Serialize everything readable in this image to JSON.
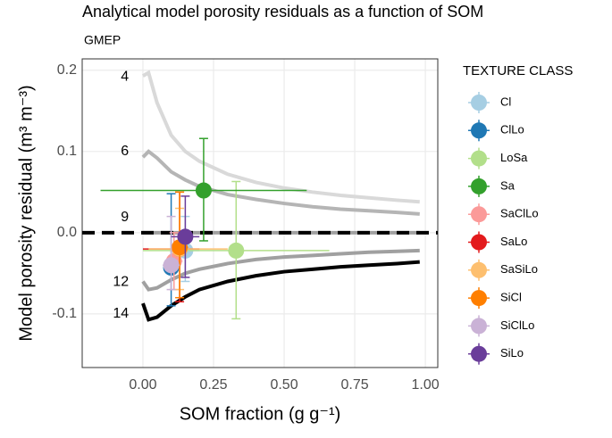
{
  "chart_data": {
    "type": "scatter",
    "title": "Analytical model porosity residuals as a function of SOM",
    "subtitle": "GMEP",
    "x_label": "SOM fraction (g g⁻¹)",
    "y_label": "Model porosity residual (m³ m⁻³)",
    "xlim": [
      -0.215,
      1.044
    ],
    "ylim": [
      -0.166,
      0.214
    ],
    "xticks": [
      {
        "value": 0,
        "label": "0.00"
      },
      {
        "value": 0.25,
        "label": "0.25"
      },
      {
        "value": 0.5,
        "label": "0.50"
      },
      {
        "value": 0.75,
        "label": "0.75"
      },
      {
        "value": 1,
        "label": "1.00"
      }
    ],
    "yticks": [
      -0.1,
      {
        "value": 0,
        "label": "0.0"
      },
      0.1,
      0.2
    ],
    "grid": true,
    "hline": 0,
    "curves": [
      {
        "name": "4",
        "color": "#d9d9d9",
        "label_at": [
          -0.05,
          0.192
        ],
        "x": [
          0,
          0.02,
          0.05,
          0.1,
          0.15,
          0.2,
          0.3,
          0.4,
          0.5,
          0.6,
          0.7,
          0.8,
          0.9,
          0.98
        ],
        "values": [
          0.193,
          0.197,
          0.16,
          0.12,
          0.1,
          0.088,
          0.072,
          0.062,
          0.055,
          0.05,
          0.046,
          0.043,
          0.04,
          0.038
        ]
      },
      {
        "name": "6",
        "color": "#b5b5b5",
        "label_at": [
          -0.05,
          0.1
        ],
        "x": [
          0,
          0.02,
          0.05,
          0.1,
          0.15,
          0.2,
          0.3,
          0.4,
          0.5,
          0.6,
          0.7,
          0.8,
          0.9,
          0.98
        ],
        "values": [
          0.093,
          0.1,
          0.092,
          0.075,
          0.065,
          0.057,
          0.047,
          0.041,
          0.036,
          0.032,
          0.029,
          0.027,
          0.025,
          0.023
        ]
      },
      {
        "name": "9",
        "color": "#a0a0a0",
        "label_at": [
          -0.05,
          0.019
        ],
        "x": [
          0,
          0.98
        ],
        "values": [
          0,
          0
        ]
      },
      {
        "name": "12",
        "color": "#a0a0a0",
        "label_at": [
          -0.05,
          -0.061
        ],
        "x": [
          0,
          0.02,
          0.05,
          0.1,
          0.15,
          0.2,
          0.3,
          0.4,
          0.5,
          0.6,
          0.7,
          0.8,
          0.9,
          0.98
        ],
        "values": [
          -0.06,
          -0.07,
          -0.068,
          -0.058,
          -0.05,
          -0.045,
          -0.038,
          -0.033,
          -0.03,
          -0.028,
          -0.026,
          -0.024,
          -0.023,
          -0.022
        ]
      },
      {
        "name": "14",
        "color": "#000000",
        "label_at": [
          -0.05,
          -0.1
        ],
        "x": [
          0,
          0.02,
          0.05,
          0.1,
          0.15,
          0.2,
          0.3,
          0.4,
          0.5,
          0.6,
          0.7,
          0.8,
          0.9,
          0.98
        ],
        "values": [
          -0.087,
          -0.107,
          -0.104,
          -0.09,
          -0.079,
          -0.07,
          -0.06,
          -0.053,
          -0.048,
          -0.045,
          -0.042,
          -0.04,
          -0.038,
          -0.036
        ]
      }
    ],
    "legend_title": "TEXTURE CLASS",
    "legend": "right",
    "series": [
      {
        "name": "Cl",
        "color": "#a6cee3",
        "x": 0.15,
        "y": -0.022,
        "xmin": 0.1,
        "xmax": 0.2,
        "ymin": -0.06,
        "ymax": 0.02
      },
      {
        "name": "ClLo",
        "color": "#1f78b4",
        "x": 0.1,
        "y": -0.043,
        "xmin": 0.08,
        "xmax": 0.12,
        "ymin": -0.09,
        "ymax": 0.048
      },
      {
        "name": "LoSa",
        "color": "#b2df8a",
        "x": 0.33,
        "y": -0.022,
        "xmin": 0.0,
        "xmax": 0.66,
        "ymin": -0.106,
        "ymax": 0.063
      },
      {
        "name": "Sa",
        "color": "#33a02c",
        "x": 0.215,
        "y": 0.052,
        "xmin": -0.15,
        "xmax": 0.58,
        "ymin": -0.01,
        "ymax": 0.116
      },
      {
        "name": "SaClLo",
        "color": "#fb9a99",
        "x": 0.11,
        "y": -0.035,
        "xmin": 0.08,
        "xmax": 0.14,
        "ymin": -0.07,
        "ymax": 0.0
      },
      {
        "name": "SaLo",
        "color": "#e31a1c",
        "x": 0.13,
        "y": -0.02,
        "xmin": 0.0,
        "xmax": 0.2,
        "ymin": -0.085,
        "ymax": 0.05
      },
      {
        "name": "SaSiLo",
        "color": "#fdbf6f",
        "x": 0.13,
        "y": -0.02,
        "xmin": 0.02,
        "xmax": 0.3,
        "ymin": -0.07,
        "ymax": 0.03
      },
      {
        "name": "SiCl",
        "color": "#ff7f00",
        "x": 0.13,
        "y": -0.018,
        "xmin": 0.1,
        "xmax": 0.16,
        "ymin": -0.08,
        "ymax": 0.05
      },
      {
        "name": "SiClLo",
        "color": "#cab2d6",
        "x": 0.1,
        "y": -0.04,
        "xmin": 0.07,
        "xmax": 0.13,
        "ymin": -0.07,
        "ymax": 0.02
      },
      {
        "name": "SiLo",
        "color": "#6a3d9a",
        "x": 0.15,
        "y": -0.005,
        "xmin": 0.1,
        "xmax": 0.2,
        "ymin": -0.055,
        "ymax": 0.045
      }
    ]
  }
}
